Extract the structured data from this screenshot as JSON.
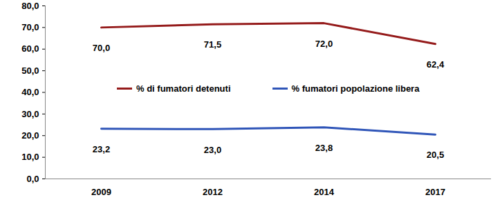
{
  "chart_data": {
    "type": "line",
    "categories": [
      "2009",
      "2012",
      "2014",
      "2017"
    ],
    "series": [
      {
        "name": "% di fumatori detenuti",
        "color": "#951b1b",
        "values": [
          70.0,
          71.5,
          72.0,
          62.4
        ],
        "value_labels": [
          "70,0",
          "71,5",
          "72,0",
          "62,4"
        ]
      },
      {
        "name": "% fumatori popolazione libera",
        "color": "#2f55b8",
        "values": [
          23.2,
          23.0,
          23.8,
          20.5
        ],
        "value_labels": [
          "23,2",
          "23,0",
          "23,8",
          "20,5"
        ]
      }
    ],
    "ylim": [
      0,
      80
    ],
    "yticks": [
      {
        "value": 0,
        "label": "0,0"
      },
      {
        "value": 10,
        "label": "10,0"
      },
      {
        "value": 20,
        "label": "20,0"
      },
      {
        "value": 30,
        "label": "30,0"
      },
      {
        "value": 40,
        "label": "40,0"
      },
      {
        "value": 50,
        "label": "50,0"
      },
      {
        "value": 60,
        "label": "60,0"
      },
      {
        "value": 70,
        "label": "70,0"
      },
      {
        "value": 80,
        "label": "80,0"
      }
    ],
    "grid": false,
    "data_labels": true,
    "legend": "center"
  }
}
